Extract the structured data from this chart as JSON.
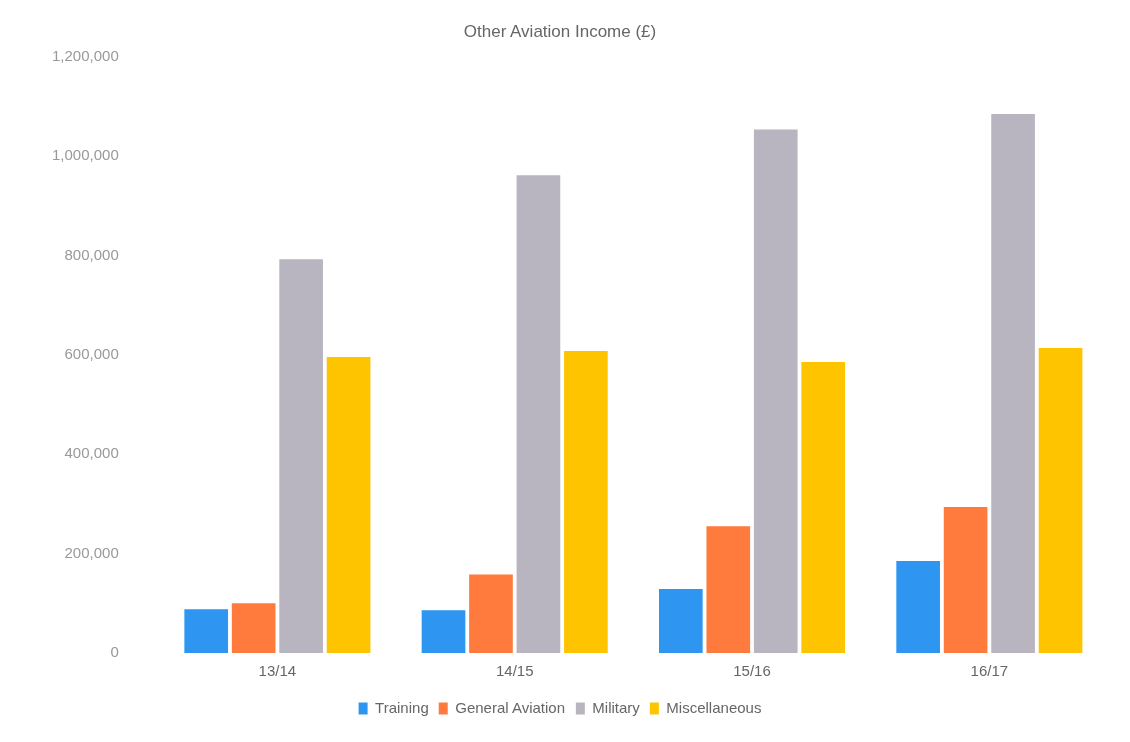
{
  "chart_data": {
    "type": "bar",
    "title": "Other Aviation Income (£)",
    "categories": [
      "13/14",
      "14/15",
      "15/16",
      "16/17"
    ],
    "series": [
      {
        "name": "Training",
        "color": "#2e96f0",
        "values": [
          88000,
          86000,
          129000,
          185000
        ]
      },
      {
        "name": "General Aviation",
        "color": "#ff7a3d",
        "values": [
          100000,
          158000,
          255000,
          294000
        ]
      },
      {
        "name": "Military",
        "color": "#b8b5c0",
        "values": [
          793000,
          962000,
          1054000,
          1085000
        ]
      },
      {
        "name": "Miscellaneous",
        "color": "#ffc400",
        "values": [
          596000,
          608000,
          586000,
          614000
        ]
      }
    ],
    "ylim": [
      0,
      1200000
    ],
    "yticks": [
      0,
      {
        "value": 200000,
        "label": "200,000"
      },
      {
        "value": 400000,
        "label": "400,000"
      },
      {
        "value": 600000,
        "label": "600,000"
      },
      {
        "value": 800000,
        "label": "800,000"
      },
      {
        "value": 1000000,
        "label": "1,000,000"
      },
      {
        "value": 1200000,
        "label": "1,200,000"
      }
    ],
    "grid": false,
    "legend": "bottom"
  }
}
